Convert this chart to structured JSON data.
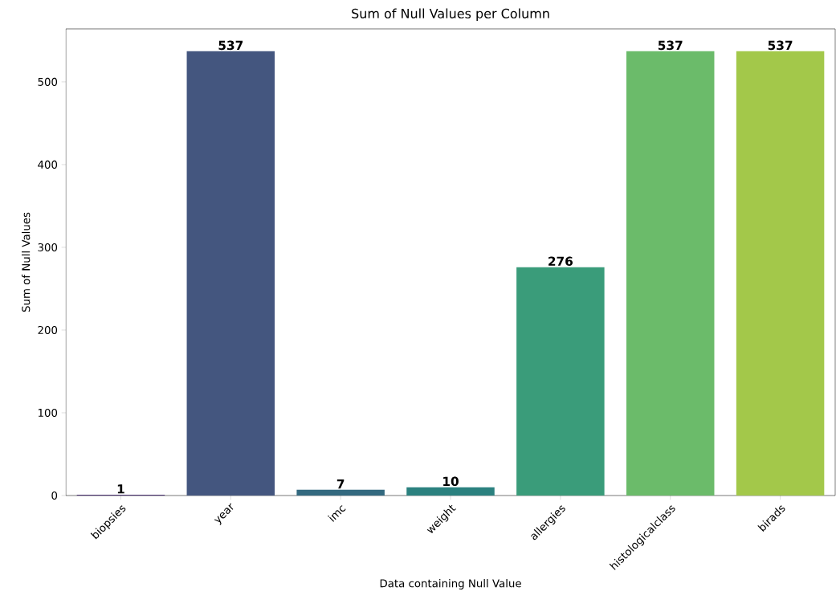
{
  "chart_data": {
    "type": "bar",
    "title": "Sum of Null Values per Column",
    "xlabel": "Data containing Null Value",
    "ylabel": "Sum of Null Values",
    "categories": [
      "biopsies",
      "year",
      "imc",
      "weight",
      "allergies",
      "histologicalclass",
      "birads"
    ],
    "values": [
      1,
      537,
      7,
      10,
      276,
      537,
      537
    ],
    "colors": [
      "#482f6f",
      "#44567f",
      "#33697f",
      "#2b817f",
      "#3a9c7a",
      "#6bbb6a",
      "#a3c84a"
    ],
    "ylim": [
      0,
      564
    ],
    "yticks": [
      0,
      100,
      200,
      300,
      400,
      500
    ],
    "data_labels": true
  }
}
